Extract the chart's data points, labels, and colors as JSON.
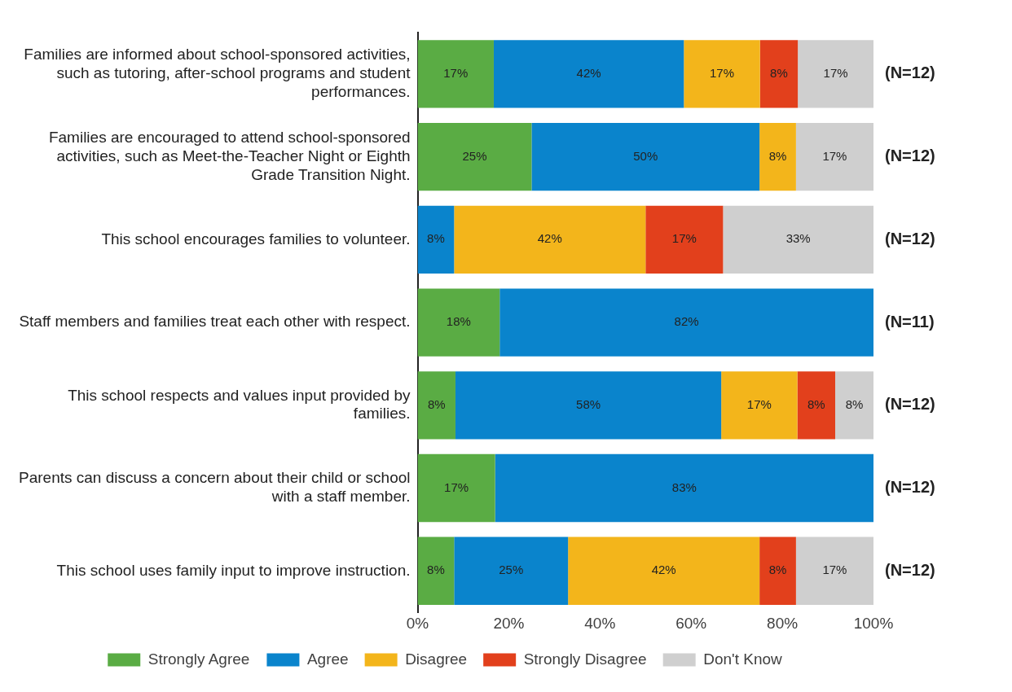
{
  "chart_data": {
    "type": "bar",
    "orientation": "horizontal",
    "stacked": true,
    "categories": [
      "Families are informed about school-sponsored activities, such as tutoring, after-school programs and student performances.",
      "Families are encouraged to attend school-sponsored activities, such as Meet-the-Teacher Night or Eighth Grade Transition Night.",
      "This school encourages families to volunteer.",
      "Staff members and families treat each other with respect.",
      "This school respects and values input provided by families.",
      "Parents can discuss a concern about their child or school with a staff member.",
      "This school uses family input to improve instruction."
    ],
    "series": [
      {
        "name": "Strongly Agree",
        "color": "#5aac44",
        "values": [
          16.7,
          25,
          null,
          18,
          8.3,
          17,
          8
        ],
        "value_labels": [
          "17%",
          "25%",
          null,
          "18%",
          "8%",
          "17%",
          "8%"
        ]
      },
      {
        "name": "Agree",
        "color": "#0a84cc",
        "values": [
          41.7,
          50,
          8,
          82,
          58.3,
          83,
          25
        ],
        "value_labels": [
          "42%",
          "50%",
          "8%",
          "82%",
          "58%",
          "83%",
          "25%"
        ]
      },
      {
        "name": "Disagree",
        "color": "#f3b51b",
        "values": [
          16.7,
          8,
          42,
          null,
          16.7,
          null,
          42
        ],
        "value_labels": [
          "17%",
          "8%",
          "42%",
          null,
          "17%",
          null,
          "42%"
        ]
      },
      {
        "name": "Strongly Disagree",
        "color": "#e2401c",
        "values": [
          8.3,
          null,
          17,
          null,
          8.3,
          null,
          8
        ],
        "value_labels": [
          "8%",
          null,
          "17%",
          null,
          "8%",
          null,
          "8%"
        ]
      },
      {
        "name": "Don't Know",
        "color": "#cfcfcf",
        "values": [
          16.6,
          17,
          33,
          null,
          8.4,
          null,
          17
        ],
        "value_labels": [
          "17%",
          "17%",
          "33%",
          null,
          "8%",
          null,
          "17%"
        ]
      }
    ],
    "xlim": [
      0,
      100
    ],
    "xticks": [
      {
        "value": 0,
        "label": "0%"
      },
      {
        "value": 20,
        "label": "20%"
      },
      {
        "value": 40,
        "label": "40%"
      },
      {
        "value": 60,
        "label": "60%"
      },
      {
        "value": 80,
        "label": "80%"
      },
      {
        "value": 100,
        "label": "100%"
      }
    ],
    "annotations": [
      "(N=12)",
      "(N=12)",
      "(N=12)",
      "(N=11)",
      "(N=12)",
      "(N=12)",
      "(N=12)"
    ],
    "grid": false,
    "legend": "bottom"
  }
}
